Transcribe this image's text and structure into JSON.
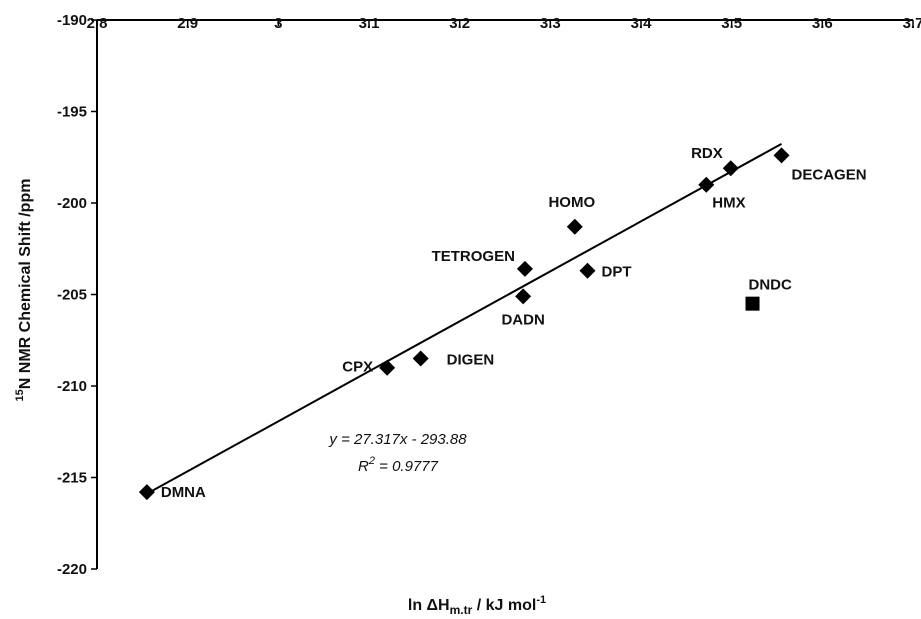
{
  "chart_data": {
    "type": "scatter",
    "x_label": {
      "pre": "ln ΔH",
      "sub": "m.tr",
      "post": "  / kJ mol",
      "sup": "-1"
    },
    "y_label": {
      "sup": "15",
      "main": "N NMR Chemical Shift  /ppm"
    },
    "xlim": [
      2.8,
      3.7
    ],
    "ylim": [
      -220,
      -190
    ],
    "x_ticks": [
      "2.8",
      "2.9",
      "3",
      "3.1",
      "3.2",
      "3.3",
      "3.4",
      "3.5",
      "3.6",
      "3.7"
    ],
    "y_ticks": [
      "-190",
      "-195",
      "-200",
      "-205",
      "-210",
      "-215",
      "-220"
    ],
    "points": [
      {
        "label": "DMNA",
        "x": 2.855,
        "y": -215.8,
        "marker": "diamond"
      },
      {
        "label": "CPX",
        "x": 3.12,
        "y": -209.0,
        "marker": "diamond"
      },
      {
        "label": "DIGEN",
        "x": 3.157,
        "y": -208.5,
        "marker": "diamond"
      },
      {
        "label": "TETROGEN",
        "x": 3.272,
        "y": -203.6,
        "marker": "diamond"
      },
      {
        "label": "DADN",
        "x": 3.27,
        "y": -205.1,
        "marker": "diamond"
      },
      {
        "label": "HOMO",
        "x": 3.327,
        "y": -201.3,
        "marker": "diamond"
      },
      {
        "label": "DPT",
        "x": 3.341,
        "y": -203.7,
        "marker": "diamond"
      },
      {
        "label": "HMX",
        "x": 3.472,
        "y": -199.0,
        "marker": "diamond"
      },
      {
        "label": "RDX",
        "x": 3.499,
        "y": -198.1,
        "marker": "diamond"
      },
      {
        "label": "DECAGEN",
        "x": 3.555,
        "y": -197.4,
        "marker": "diamond"
      },
      {
        "label": "DNDC",
        "x": 3.523,
        "y": -205.5,
        "marker": "square"
      }
    ],
    "trendline": {
      "slope": 27.317,
      "intercept": -293.88,
      "x_range": [
        2.855,
        3.555
      ]
    },
    "equation_text": "y = 27.317x - 293.88",
    "r2_text": {
      "pre": "R",
      "sup": "2",
      "post": " = 0.9777"
    },
    "grid": false,
    "legend": "none"
  }
}
